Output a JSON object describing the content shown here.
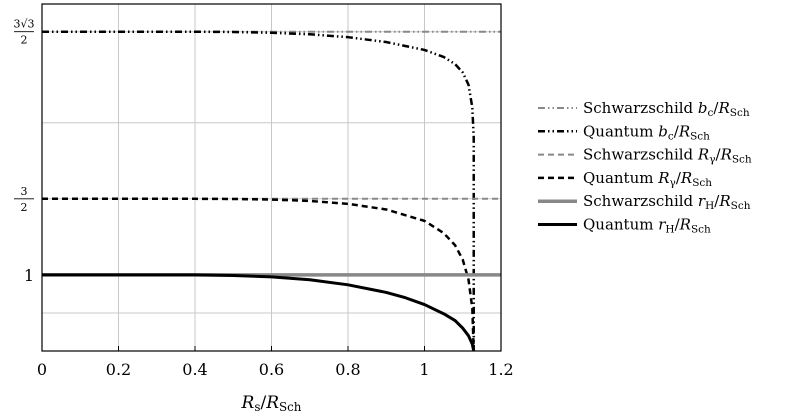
{
  "chart_data": {
    "type": "line",
    "xlabel": "R_s/R_Sch",
    "xlim": [
      0,
      1.2
    ],
    "ylim": [
      0.5,
      2.78
    ],
    "grid": true,
    "legend_position": "right",
    "x_ticks": [
      {
        "value": 0,
        "label": "0"
      },
      {
        "value": 0.2,
        "label": "0.2"
      },
      {
        "value": 0.4,
        "label": "0.4"
      },
      {
        "value": 0.6,
        "label": "0.6"
      },
      {
        "value": 0.8,
        "label": "0.8"
      },
      {
        "value": 1.0,
        "label": "1"
      },
      {
        "value": 1.2,
        "label": "1.2"
      }
    ],
    "y_ticks": [
      {
        "value": 1.0,
        "label": "1"
      },
      {
        "value": 1.5,
        "label": "3/2"
      },
      {
        "value": 2.598,
        "label": "3√3/2"
      }
    ],
    "y_gridlines": [
      0.75,
      1.0,
      1.5,
      2.0,
      2.598
    ],
    "series": [
      {
        "name": "Schwarzschild b_c/R_Sch",
        "color": "#888888",
        "dash": "dashdotdot",
        "width": 2,
        "x": [
          0,
          1.2
        ],
        "y": [
          2.598,
          2.598
        ]
      },
      {
        "name": "Quantum b_c/R_Sch",
        "color": "#000000",
        "dash": "dashdotdot",
        "width": 2.5,
        "x": [
          0,
          0.2,
          0.4,
          0.5,
          0.6,
          0.7,
          0.8,
          0.9,
          1.0,
          1.05,
          1.08,
          1.1,
          1.115,
          1.125,
          1.1287,
          1.1287
        ],
        "y": [
          2.598,
          2.598,
          2.598,
          2.596,
          2.591,
          2.581,
          2.562,
          2.53,
          2.478,
          2.432,
          2.385,
          2.33,
          2.25,
          2.1,
          1.9,
          0.5
        ]
      },
      {
        "name": "Schwarzschild R_γ/R_Sch",
        "color": "#888888",
        "dash": "dashed",
        "width": 2,
        "x": [
          0,
          1.2
        ],
        "y": [
          1.5,
          1.5
        ]
      },
      {
        "name": "Quantum R_γ/R_Sch",
        "color": "#000000",
        "dash": "dashed",
        "width": 2.5,
        "x": [
          0,
          0.2,
          0.4,
          0.5,
          0.6,
          0.7,
          0.8,
          0.9,
          1.0,
          1.05,
          1.08,
          1.1,
          1.115,
          1.125,
          1.1287
        ],
        "y": [
          1.5,
          1.5,
          1.5,
          1.499,
          1.495,
          1.486,
          1.467,
          1.43,
          1.355,
          1.275,
          1.195,
          1.1,
          0.97,
          0.78,
          0.5
        ]
      },
      {
        "name": "Schwarzschild r_H/R_Sch",
        "color": "#888888",
        "dash": "solid",
        "width": 3.5,
        "x": [
          0,
          1.2
        ],
        "y": [
          1.0,
          1.0
        ]
      },
      {
        "name": "Quantum r_H/R_Sch",
        "color": "#000000",
        "dash": "solid",
        "width": 3,
        "x": [
          0,
          0.2,
          0.4,
          0.5,
          0.6,
          0.7,
          0.8,
          0.9,
          0.95,
          1.0,
          1.05,
          1.08,
          1.1,
          1.115,
          1.125,
          1.1287
        ],
        "y": [
          1.0,
          1.0,
          1.0,
          0.996,
          0.987,
          0.968,
          0.935,
          0.885,
          0.85,
          0.805,
          0.745,
          0.7,
          0.65,
          0.6,
          0.545,
          0.5
        ]
      }
    ]
  }
}
